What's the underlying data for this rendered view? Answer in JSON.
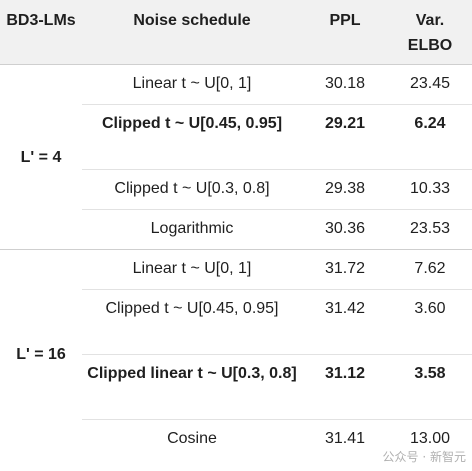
{
  "table": {
    "headers": {
      "model": "BD3-LMs",
      "schedule": "Noise schedule",
      "ppl": "PPL",
      "var_elbo": "Var. ELBO"
    },
    "groups": [
      {
        "label": "L' = 4",
        "rows": [
          {
            "schedule": "Linear t ~ U[0, 1]",
            "ppl": "30.18",
            "var": "23.45",
            "bold": false
          },
          {
            "schedule": "Clipped t ~ U[0.45, 0.95]",
            "ppl": "29.21",
            "var": "6.24",
            "bold": true
          },
          {
            "schedule": "Clipped t ~ U[0.3, 0.8]",
            "ppl": "29.38",
            "var": "10.33",
            "bold": false
          },
          {
            "schedule": "Logarithmic",
            "ppl": "30.36",
            "var": "23.53",
            "bold": false
          }
        ]
      },
      {
        "label": "L' = 16",
        "rows": [
          {
            "schedule": "Linear t ~ U[0, 1]",
            "ppl": "31.72",
            "var": "7.62",
            "bold": false
          },
          {
            "schedule": "Clipped t ~ U[0.45, 0.95]",
            "ppl": "31.42",
            "var": "3.60",
            "bold": false
          },
          {
            "schedule": "Clipped linear t ~ U[0.3, 0.8]",
            "ppl": "31.12",
            "var": "3.58",
            "bold": true
          },
          {
            "schedule": "Cosine",
            "ppl": "31.41",
            "var": "13.00",
            "bold": false
          }
        ]
      }
    ]
  },
  "watermark": "公众号 · 新智元"
}
